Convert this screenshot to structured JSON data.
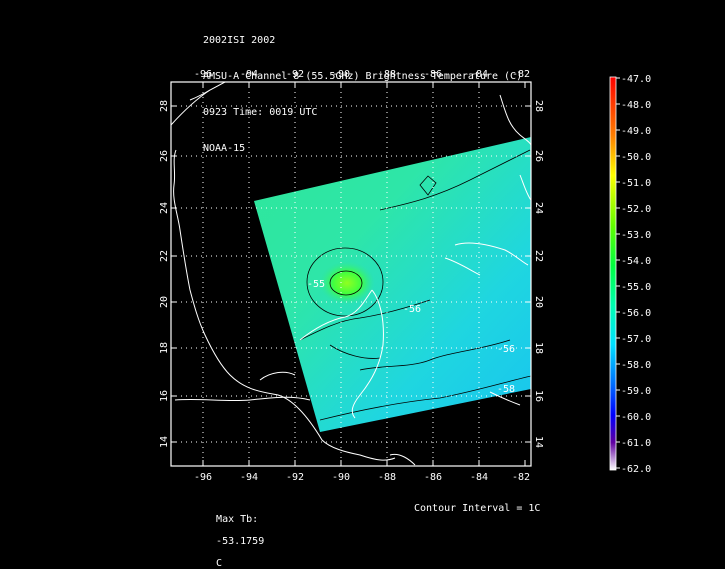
{
  "header": {
    "line1": "2002ISI 2002",
    "line2": "AMSU-A Channel 8 (55.5GHz) Brightness Temperature (C)",
    "line3": "0923 Time: 0019 UTC",
    "line4": "NOAA-15"
  },
  "footer": {
    "max_label": "Max Tb:",
    "max_value": "-53.1759",
    "max_unit": "C",
    "contour": "Contour Interval = 1C"
  },
  "map": {
    "lon_ticks": [
      "-96",
      "-94",
      "-92",
      "-90",
      "-88",
      "-86",
      "-84",
      "-82"
    ],
    "lat_ticks": [
      "28",
      "26",
      "24",
      "22",
      "20",
      "18",
      "16",
      "14"
    ],
    "contour_labels": [
      "-55",
      "-56",
      "-56",
      "-58"
    ]
  },
  "colorbar": {
    "labels": [
      "-47.0",
      "-48.0",
      "-49.0",
      "-50.0",
      "-51.0",
      "-52.0",
      "-53.0",
      "-54.0",
      "-55.0",
      "-56.0",
      "-57.0",
      "-58.0",
      "-59.0",
      "-60.0",
      "-61.0",
      "-62.0"
    ],
    "colors": [
      "#ff0000",
      "#ff4000",
      "#ff8000",
      "#ffc000",
      "#ffff00",
      "#80ff00",
      "#00ff00",
      "#00ff80",
      "#00ffc0",
      "#00e0ff",
      "#00a0ff",
      "#0060ff",
      "#0000ff",
      "#4000c0",
      "#600080",
      "#ffffff"
    ]
  }
}
